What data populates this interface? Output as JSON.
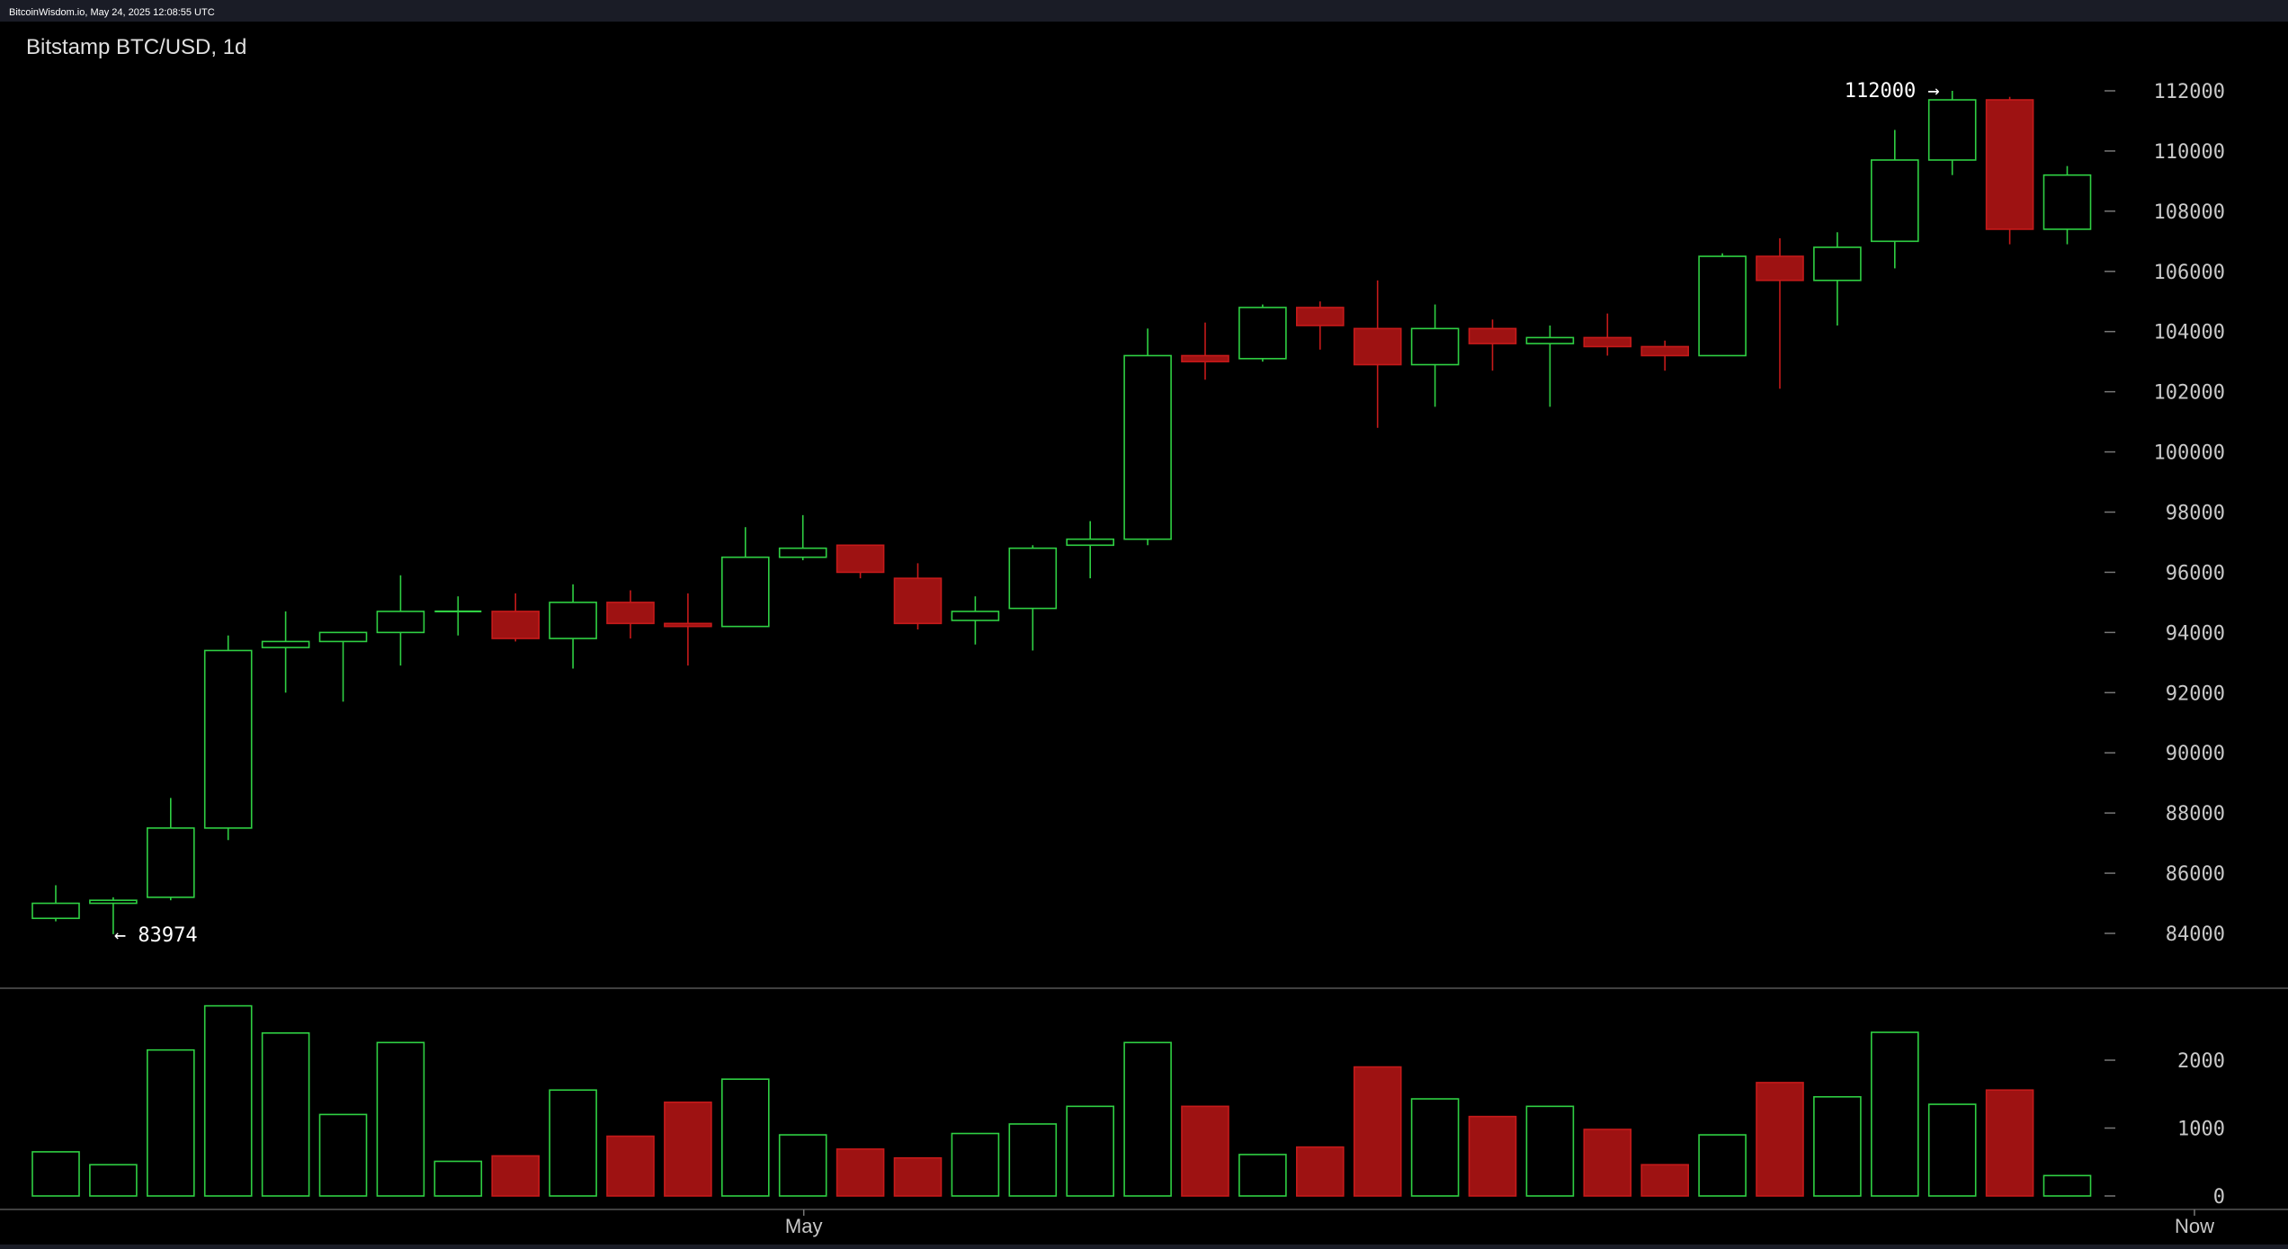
{
  "header": {
    "site_timestamp": "BitcoinWisdom.io, May 24, 2025 12:08:55 UTC",
    "chart_title": "Bitstamp BTC/USD, 1d"
  },
  "colors": {
    "page_bg": "#1a1c26",
    "panel_bg": "#000000",
    "up": "#2fd043",
    "down": "#c61a1a",
    "down_fill": "#9e1212",
    "axis_text": "#c8c8c8",
    "separator": "#555555",
    "annotation": "#ffffff"
  },
  "chart_data": {
    "type": "candlestick",
    "title": "Bitstamp BTC/USD, 1d",
    "price_axis": {
      "ticks": [
        84000,
        86000,
        88000,
        90000,
        92000,
        94000,
        96000,
        98000,
        100000,
        102000,
        104000,
        106000,
        108000,
        110000,
        112000
      ],
      "range": [
        82300,
        113800
      ]
    },
    "volume_axis": {
      "ticks": [
        0,
        1000,
        2000
      ],
      "range": [
        0,
        3000
      ]
    },
    "x_labels": [
      {
        "index": 13,
        "label": "May"
      },
      {
        "index": 37,
        "label": "Now"
      }
    ],
    "annotations": [
      {
        "label": "112000 →",
        "value": 112000,
        "index": 33
      },
      {
        "label": "← 83974",
        "value": 83974,
        "index": 1
      }
    ],
    "candles": [
      {
        "o": 84500,
        "h": 85600,
        "l": 84400,
        "c": 85000,
        "v": 650
      },
      {
        "o": 85000,
        "h": 85200,
        "l": 83974,
        "c": 85100,
        "v": 460
      },
      {
        "o": 85200,
        "h": 88500,
        "l": 85100,
        "c": 87500,
        "v": 2150
      },
      {
        "o": 87500,
        "h": 93900,
        "l": 87100,
        "c": 93400,
        "v": 2800
      },
      {
        "o": 93500,
        "h": 94700,
        "l": 92000,
        "c": 93700,
        "v": 2400
      },
      {
        "o": 93700,
        "h": 94000,
        "l": 91700,
        "c": 94000,
        "v": 1200
      },
      {
        "o": 94000,
        "h": 95900,
        "l": 92900,
        "c": 94700,
        "v": 2260
      },
      {
        "o": 94700,
        "h": 95200,
        "l": 93900,
        "c": 94700,
        "v": 510
      },
      {
        "o": 94700,
        "h": 95300,
        "l": 93700,
        "c": 93800,
        "v": 590
      },
      {
        "o": 93800,
        "h": 95600,
        "l": 92800,
        "c": 95000,
        "v": 1560
      },
      {
        "o": 95000,
        "h": 95400,
        "l": 93800,
        "c": 94300,
        "v": 880
      },
      {
        "o": 94300,
        "h": 95300,
        "l": 92900,
        "c": 94200,
        "v": 1380
      },
      {
        "o": 94200,
        "h": 97500,
        "l": 94200,
        "c": 96500,
        "v": 1720
      },
      {
        "o": 96500,
        "h": 97900,
        "l": 96400,
        "c": 96800,
        "v": 900
      },
      {
        "o": 96900,
        "h": 96900,
        "l": 95800,
        "c": 96000,
        "v": 690
      },
      {
        "o": 95800,
        "h": 96300,
        "l": 94100,
        "c": 94300,
        "v": 560
      },
      {
        "o": 94400,
        "h": 95200,
        "l": 93600,
        "c": 94700,
        "v": 920
      },
      {
        "o": 94800,
        "h": 96900,
        "l": 93400,
        "c": 96800,
        "v": 1060
      },
      {
        "o": 96900,
        "h": 97700,
        "l": 95800,
        "c": 97100,
        "v": 1320
      },
      {
        "o": 97100,
        "h": 104100,
        "l": 96900,
        "c": 103200,
        "v": 2260
      },
      {
        "o": 103200,
        "h": 104300,
        "l": 102400,
        "c": 103000,
        "v": 1320
      },
      {
        "o": 103100,
        "h": 104900,
        "l": 103000,
        "c": 104800,
        "v": 610
      },
      {
        "o": 104800,
        "h": 105000,
        "l": 103400,
        "c": 104200,
        "v": 720
      },
      {
        "o": 104100,
        "h": 105700,
        "l": 100800,
        "c": 102900,
        "v": 1900
      },
      {
        "o": 102900,
        "h": 104900,
        "l": 101500,
        "c": 104100,
        "v": 1430
      },
      {
        "o": 104100,
        "h": 104400,
        "l": 102700,
        "c": 103600,
        "v": 1170
      },
      {
        "o": 103600,
        "h": 104200,
        "l": 101500,
        "c": 103800,
        "v": 1320
      },
      {
        "o": 103800,
        "h": 104600,
        "l": 103200,
        "c": 103500,
        "v": 980
      },
      {
        "o": 103500,
        "h": 103700,
        "l": 102700,
        "c": 103200,
        "v": 460
      },
      {
        "o": 103200,
        "h": 106600,
        "l": 103200,
        "c": 106500,
        "v": 900
      },
      {
        "o": 106500,
        "h": 107100,
        "l": 102100,
        "c": 105700,
        "v": 1670
      },
      {
        "o": 105700,
        "h": 107300,
        "l": 104200,
        "c": 106800,
        "v": 1460
      },
      {
        "o": 107000,
        "h": 110700,
        "l": 106100,
        "c": 109700,
        "v": 2410
      },
      {
        "o": 109700,
        "h": 112000,
        "l": 109200,
        "c": 111700,
        "v": 1350
      },
      {
        "o": 111700,
        "h": 111800,
        "l": 106900,
        "c": 107400,
        "v": 1560
      },
      {
        "o": 107400,
        "h": 109500,
        "l": 106900,
        "c": 109200,
        "v": 300
      }
    ]
  }
}
